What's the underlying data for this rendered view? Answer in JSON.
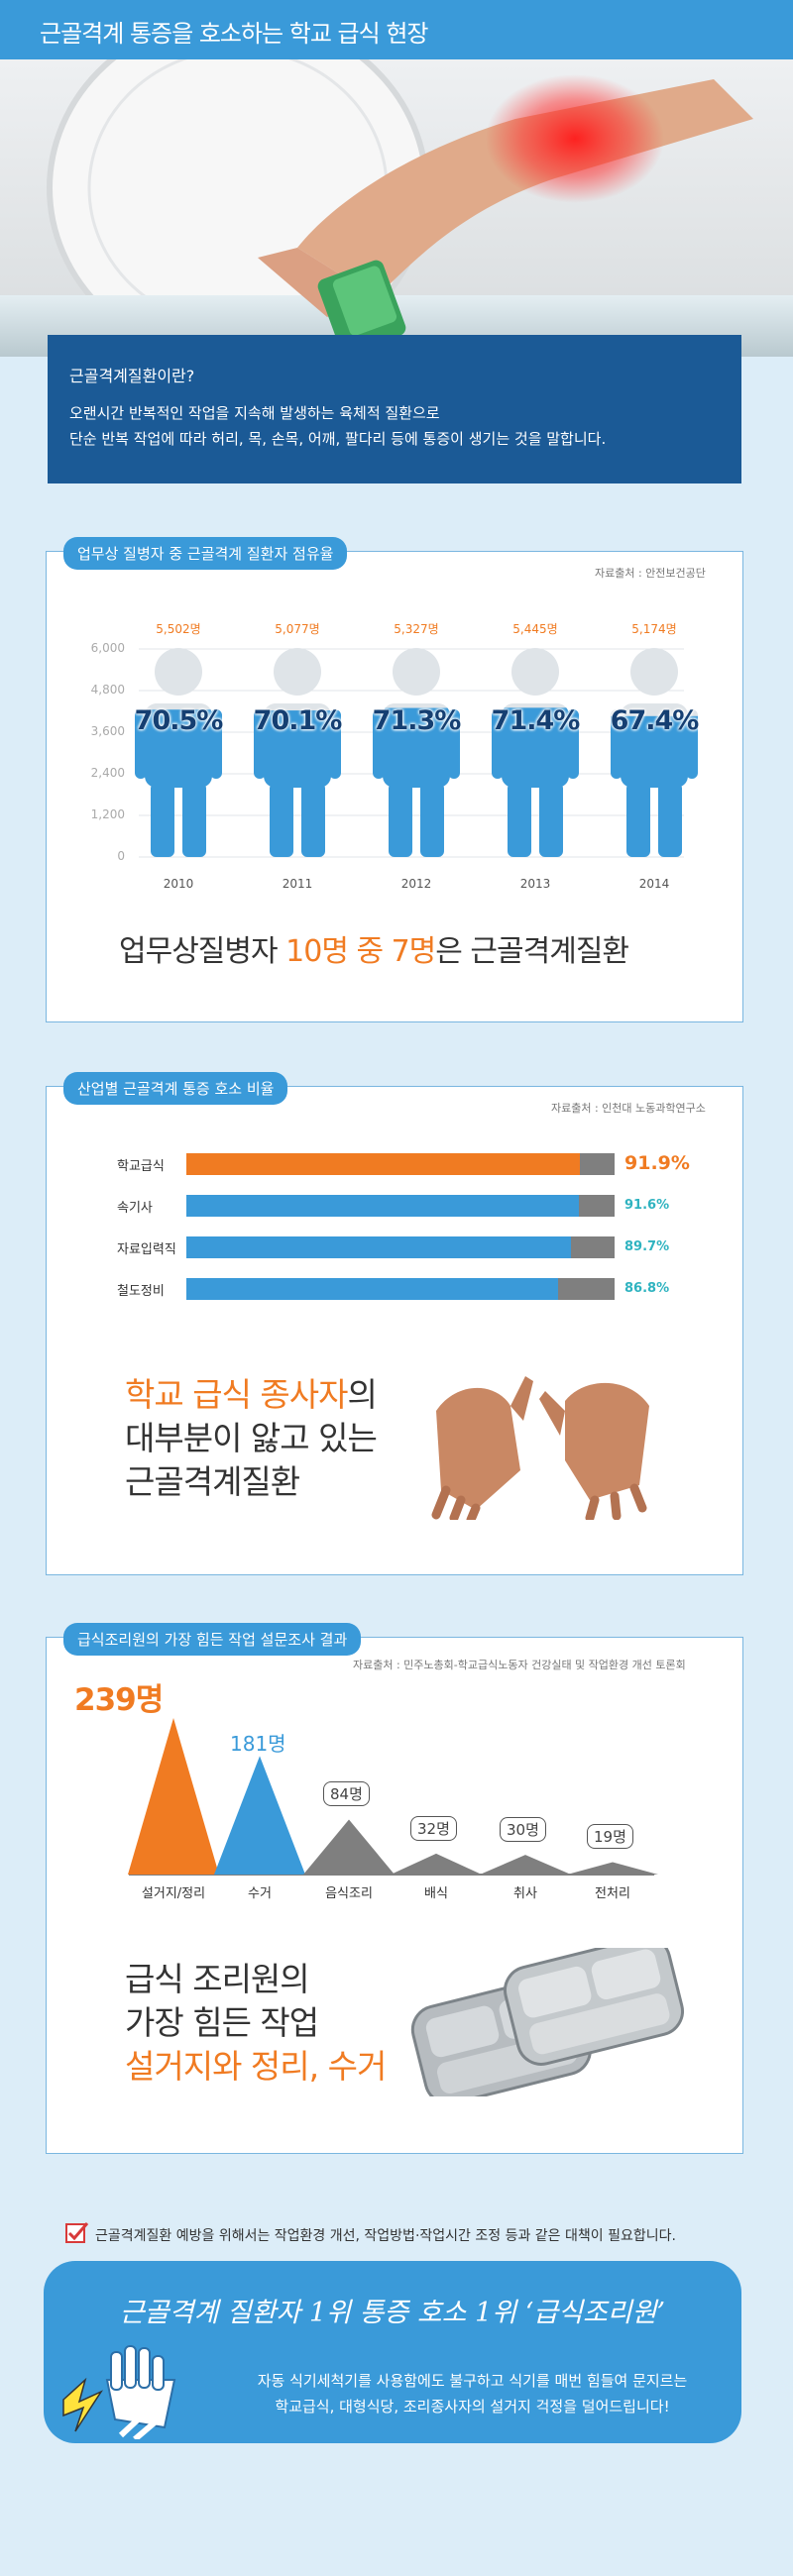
{
  "header": {
    "title": "근골격계 통증을 호소하는 학교 급식 현장"
  },
  "definition": {
    "title": "근골격계질환이란?",
    "line1": "오랜시간 반복적인 작업을 지속해 발생하는 육체적 질환으로",
    "line2": "단순 반복 작업에 따라 허리, 목, 손목, 어깨, 팔다리 등에 통증이 생기는 것을 말합니다."
  },
  "section1": {
    "pill": "업무상 질병자 중 근골격계 질환자 점유율",
    "source": "자료출처 : 안전보건공단",
    "summary_a": "업무상질병자 ",
    "summary_b": "10명 중 7명",
    "summary_c": "은 근골격계질환"
  },
  "section2": {
    "pill": "산업별 근골격계 통증 호소 비율",
    "source": "자료출처 : 인천대 노동과학연구소",
    "big_line1_a": "학교 급식 종사자",
    "big_line1_b": "의",
    "big_line2": "대부분이 앓고 있는",
    "big_line3": "근골격계질환"
  },
  "section3": {
    "pill": "급식조리원의 가장 힘든 작업 설문조사 결과",
    "source": "자료출처 : 민주노총회-학교급식노동자 건강실태 및 작업환경 개선 토론회",
    "big_line1": "급식 조리원의",
    "big_line2": "가장 힘든 작업",
    "big_line3": "설거지와 정리, 수거"
  },
  "footer": {
    "check_text": "근골격계질환 예방을 위해서는 작업환경 개선, 작업방법·작업시간 조정 등과 같은 대책이 필요합니다.",
    "headline": "근골격계 질환자 1위 통증 호소 1위 ‘급식조리원’",
    "desc1": "자동 식기세척기를 사용함에도 불구하고 식기를 매번 힘들여 문지르는",
    "desc2": "학교급식, 대형식당, 조리종사자의 설거지 걱정을 덜어드립니다!"
  },
  "colors": {
    "blue": "#3a9ad9",
    "navy": "#1b5a96",
    "orange": "#f07b22",
    "gray": "#7f7f7f",
    "teal": "#2fb3c0"
  },
  "chart_data": [
    {
      "type": "bar",
      "categories": [
        "2010",
        "2011",
        "2012",
        "2013",
        "2014"
      ],
      "values": [
        5502,
        5077,
        5327,
        5445,
        5174
      ],
      "value_labels": [
        "5,502명",
        "5,077명",
        "5,327명",
        "5,445명",
        "5,174명"
      ],
      "percent_labels": [
        "70.5%",
        "70.1%",
        "71.3%",
        "71.4%",
        "67.4%"
      ],
      "percent_values": [
        70.5,
        70.1,
        71.3,
        71.4,
        67.4
      ],
      "y_ticks": [
        "0",
        "1,200",
        "2,400",
        "3,600",
        "4,800",
        "6,000"
      ],
      "ylim": [
        0,
        6000
      ],
      "grid": true
    },
    {
      "type": "bar",
      "orientation": "horizontal",
      "categories": [
        "학교급식",
        "속기사",
        "자료입력직",
        "철도정비"
      ],
      "values": [
        91.9,
        91.6,
        89.7,
        86.8
      ],
      "value_labels": [
        "91.9%",
        "91.6%",
        "89.7%",
        "86.8%"
      ],
      "xlim": [
        0,
        100
      ]
    },
    {
      "type": "bar",
      "style": "triangle",
      "categories": [
        "설거지/정리",
        "수거",
        "음식조리",
        "배식",
        "취사",
        "전처리"
      ],
      "values": [
        239,
        181,
        84,
        32,
        30,
        19
      ],
      "value_labels": [
        "239명",
        "181명",
        "84명",
        "32명",
        "30명",
        "19명"
      ]
    }
  ]
}
